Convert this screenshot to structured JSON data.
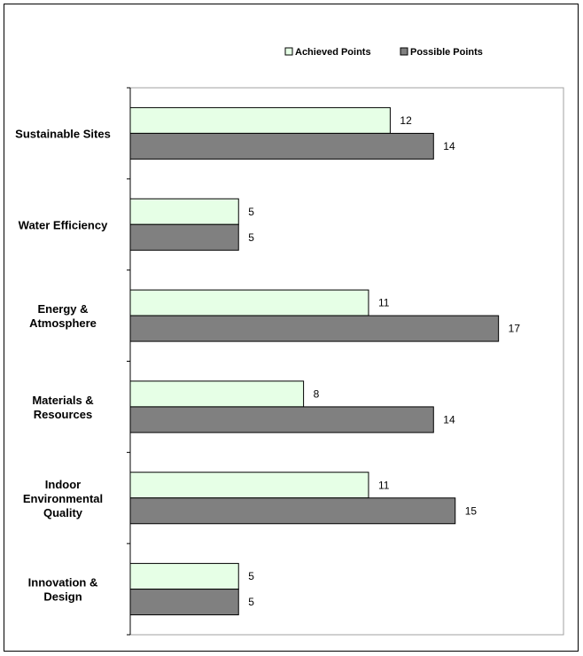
{
  "chart_data": {
    "type": "bar",
    "orientation": "horizontal",
    "categories": [
      [
        "Sustainable Sites"
      ],
      [
        "Water Efficiency"
      ],
      [
        "Energy &",
        "Atmosphere"
      ],
      [
        "Materials &",
        "Resources"
      ],
      [
        "Indoor",
        "Environmental",
        "Quality"
      ],
      [
        "Innovation &",
        "Design"
      ]
    ],
    "series": [
      {
        "name": "Achieved Points",
        "values": [
          12,
          5,
          11,
          8,
          11,
          5
        ],
        "color": "#e6ffe6"
      },
      {
        "name": "Possible Points",
        "values": [
          14,
          5,
          17,
          14,
          15,
          5
        ],
        "color": "#808080"
      }
    ],
    "title": "",
    "xlabel": "",
    "ylabel": "",
    "xlim": [
      0,
      20
    ],
    "grid": false,
    "data_labels": true,
    "legend_position": "top-right"
  }
}
